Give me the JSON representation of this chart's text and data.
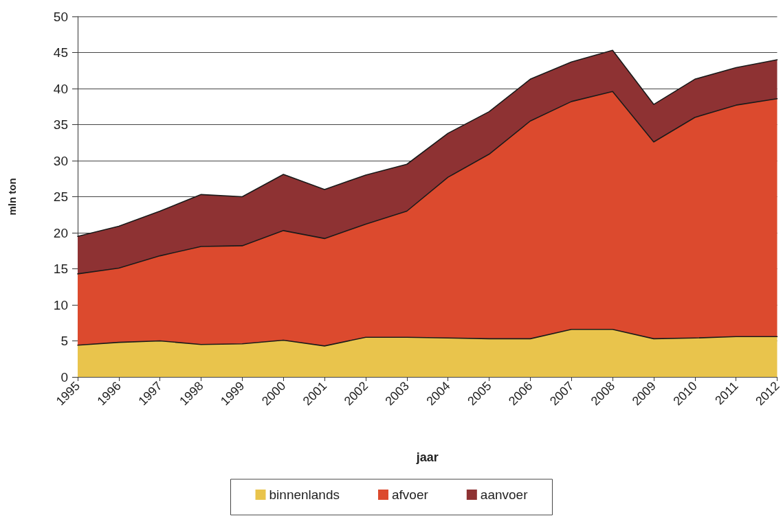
{
  "chart_data": {
    "type": "area",
    "stacked": true,
    "xlabel": "jaar",
    "ylabel": "mln ton",
    "categories": [
      "1995",
      "1996",
      "1997",
      "1998",
      "1999",
      "2000",
      "2001",
      "2002",
      "2003",
      "2004",
      "2005",
      "2006",
      "2007",
      "2008",
      "2009",
      "2010",
      "2011",
      "2012"
    ],
    "series": [
      {
        "name": "binnenlands",
        "color": "#e9c44c",
        "values": [
          4.4,
          4.8,
          5.0,
          4.5,
          4.6,
          5.1,
          4.3,
          5.5,
          5.5,
          5.4,
          5.3,
          5.3,
          6.6,
          6.6,
          5.3,
          5.4,
          5.6,
          5.6
        ]
      },
      {
        "name": "afvoer",
        "color": "#dc4a2e",
        "values": [
          9.9,
          10.3,
          11.8,
          13.6,
          13.6,
          15.2,
          14.9,
          15.7,
          17.5,
          22.3,
          25.6,
          30.2,
          31.6,
          33.0,
          27.3,
          30.6,
          32.1,
          33.0
        ]
      },
      {
        "name": "aanvoer",
        "color": "#8e3233",
        "values": [
          5.2,
          5.8,
          6.2,
          7.2,
          6.8,
          7.8,
          6.8,
          6.8,
          6.5,
          6.1,
          5.9,
          5.8,
          5.5,
          5.7,
          5.2,
          5.3,
          5.2,
          5.4
        ]
      }
    ],
    "ylim": [
      0,
      50
    ],
    "yticks": [
      0,
      5,
      10,
      15,
      20,
      25,
      30,
      35,
      40,
      45,
      50
    ],
    "grid": "y",
    "legend": "bottom",
    "marker": "none",
    "line_style": "solid"
  }
}
